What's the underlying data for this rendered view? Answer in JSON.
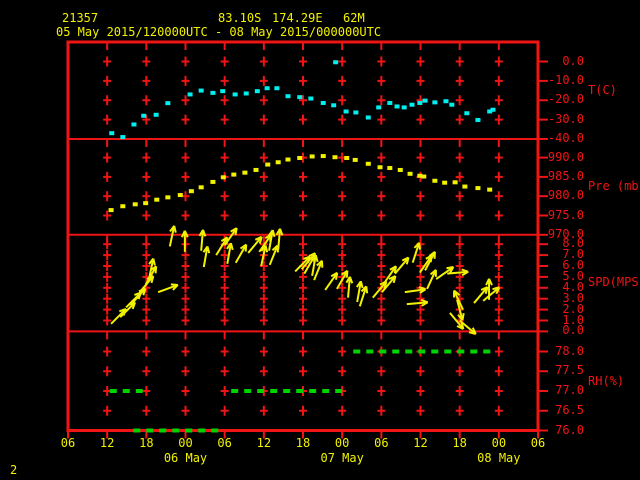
{
  "header": {
    "station_id": "21357",
    "latitude": "83.10S",
    "longitude": "174.29E",
    "elevation": "62M",
    "time_range": "05 May 2015/120000UTC - 08 May 2015/000000UTC"
  },
  "page_number": "2",
  "colors": {
    "background": "#000000",
    "grid_red": "#f01414",
    "text_yellow": "#f2f200",
    "temperature_cyan": "#00f0f0",
    "pressure_yellow": "#f2f200",
    "wind_yellow": "#f2f200",
    "humidity_green": "#00d400"
  },
  "x_axis": {
    "hours_origin": "05 May 2015 0600 UTC",
    "tick_hours": [
      0,
      6,
      12,
      18,
      24,
      30,
      36,
      42,
      48,
      54,
      60,
      66,
      72
    ],
    "tick_labels": [
      "06",
      "12",
      "18",
      "00",
      "06",
      "12",
      "18",
      "00",
      "06",
      "12",
      "18",
      "00",
      "06"
    ],
    "grid_column_hours": [
      6,
      12,
      18,
      24,
      30,
      36,
      42,
      48,
      54,
      60,
      66
    ],
    "date_labels": [
      {
        "text": "06 May",
        "hour": 18
      },
      {
        "text": "07 May",
        "hour": 42
      },
      {
        "text": "08 May",
        "hour": 66
      }
    ]
  },
  "panels": [
    {
      "id": "temperature",
      "axis_label": "T(C)",
      "tick_labels": [
        "0.0",
        "-10.0",
        "-20.0",
        "-30.0",
        "-40.0"
      ],
      "tick_values": [
        0,
        -10,
        -20,
        -30,
        -40
      ]
    },
    {
      "id": "pressure",
      "axis_label": "Pre (mb)",
      "tick_labels": [
        "990.0",
        "985.0",
        "980.0",
        "975.0",
        "970.0"
      ],
      "tick_values": [
        990,
        985,
        980,
        975,
        970
      ]
    },
    {
      "id": "wind_speed",
      "axis_label": "SPD(MPS)",
      "tick_labels": [
        "8.0",
        "7.0",
        "6.0",
        "5.0",
        "4.0",
        "3.0",
        "2.0",
        "1.0",
        "0.0"
      ],
      "tick_values": [
        8,
        7,
        6,
        5,
        4,
        3,
        2,
        1,
        0
      ]
    },
    {
      "id": "humidity",
      "axis_label": "RH(%)",
      "tick_labels": [
        "78.0",
        "77.5",
        "77.0",
        "76.5",
        "76.0"
      ],
      "tick_values": [
        78,
        77.5,
        77,
        76.5,
        76
      ]
    }
  ],
  "chart_data": [
    {
      "type": "scatter",
      "name": "temperature",
      "ylabel": "T(C)",
      "ylim": [
        -40,
        0
      ],
      "x_unit": "hours after 05 May 2015 0600 UTC",
      "points": [
        [
          6.7,
          -37
        ],
        [
          8.4,
          -39
        ],
        [
          10.1,
          -32.5
        ],
        [
          11.6,
          -28
        ],
        [
          13.5,
          -27.5
        ],
        [
          15.3,
          -21.5
        ],
        [
          18.7,
          -17
        ],
        [
          20.4,
          -15
        ],
        [
          22.2,
          -16.2
        ],
        [
          23.7,
          -15.3
        ],
        [
          25.6,
          -17
        ],
        [
          27.3,
          -16.5
        ],
        [
          29,
          -15.3
        ],
        [
          30.5,
          -13.8
        ],
        [
          32,
          -13.8
        ],
        [
          33.7,
          -17.9
        ],
        [
          35.5,
          -18.4
        ],
        [
          37.2,
          -19.1
        ],
        [
          39.1,
          -21.4
        ],
        [
          40.7,
          -22.6
        ],
        [
          42.6,
          -25.8
        ],
        [
          44.1,
          -26.3
        ],
        [
          46,
          -28.9
        ],
        [
          47.6,
          -23.7
        ],
        [
          49.3,
          -21.4
        ],
        [
          50.4,
          -23.2
        ],
        [
          51.5,
          -23.7
        ],
        [
          52.7,
          -22.3
        ],
        [
          53.9,
          -21.4
        ],
        [
          54.7,
          -20.2
        ],
        [
          56.2,
          -21.1
        ],
        [
          57.9,
          -20.5
        ],
        [
          58.8,
          -22.3
        ],
        [
          61.1,
          -26.7
        ],
        [
          62.8,
          -30.2
        ],
        [
          64.6,
          -25.8
        ],
        [
          65.1,
          -24.9
        ],
        [
          41,
          -0.4
        ]
      ]
    },
    {
      "type": "scatter",
      "name": "pressure",
      "ylabel": "Pre (mb)",
      "ylim": [
        970,
        990
      ],
      "x_unit": "hours after 05 May 2015 0600 UTC",
      "points": [
        [
          6.6,
          976.4
        ],
        [
          8.4,
          977.4
        ],
        [
          10.3,
          977.9
        ],
        [
          11.9,
          978.2
        ],
        [
          13.6,
          979.1
        ],
        [
          15.3,
          979.7
        ],
        [
          17.2,
          980.3
        ],
        [
          18.9,
          981.3
        ],
        [
          20.4,
          982.3
        ],
        [
          22.2,
          983.7
        ],
        [
          23.8,
          984.9
        ],
        [
          25.4,
          985.6
        ],
        [
          27.1,
          986.1
        ],
        [
          28.8,
          986.8
        ],
        [
          30.6,
          988.2
        ],
        [
          32.2,
          988.8
        ],
        [
          33.7,
          989.5
        ],
        [
          35.5,
          989.9
        ],
        [
          37.4,
          990.3
        ],
        [
          39.1,
          990.4
        ],
        [
          40.9,
          990.1
        ],
        [
          42.7,
          989.9
        ],
        [
          44,
          989.4
        ],
        [
          46,
          988.4
        ],
        [
          47.8,
          987.5
        ],
        [
          49.3,
          987.3
        ],
        [
          50.9,
          986.8
        ],
        [
          52.4,
          985.8
        ],
        [
          53.9,
          985.3
        ],
        [
          54.5,
          985.1
        ],
        [
          56.2,
          984
        ],
        [
          57.7,
          983.5
        ],
        [
          59.3,
          983.6
        ],
        [
          60.8,
          982.5
        ],
        [
          62.8,
          982.1
        ],
        [
          64.6,
          981.7
        ]
      ]
    },
    {
      "type": "wind-vector",
      "name": "wind_speed",
      "ylabel": "SPD(MPS)",
      "ylim": [
        0,
        8
      ],
      "x_unit": "hours after 05 May 2015 0600 UTC",
      "point_format": [
        "hour",
        "speed_mps",
        "direction_deg_cw_from_up"
      ],
      "points": [
        [
          6.6,
          0.7,
          45
        ],
        [
          8,
          1.3,
          45
        ],
        [
          8.9,
          2.2,
          45
        ],
        [
          9.7,
          2.5,
          42
        ],
        [
          11,
          3.6,
          40
        ],
        [
          11.9,
          4.3,
          30
        ],
        [
          12.4,
          4.8,
          12
        ],
        [
          13.8,
          3.6,
          70
        ],
        [
          15.6,
          7.8,
          12
        ],
        [
          17.9,
          7.3,
          0
        ],
        [
          20.4,
          7.4,
          5
        ],
        [
          20.8,
          5.9,
          10
        ],
        [
          22.7,
          7,
          32
        ],
        [
          24,
          7.9,
          35
        ],
        [
          24.4,
          6.2,
          10
        ],
        [
          25.7,
          6.3,
          30
        ],
        [
          27.6,
          7.2,
          40
        ],
        [
          29.3,
          7.3,
          35
        ],
        [
          29.6,
          6,
          12
        ],
        [
          30.8,
          7.4,
          10
        ],
        [
          30.9,
          6.1,
          22
        ],
        [
          32.2,
          7.5,
          5
        ],
        [
          34.8,
          5.5,
          45
        ],
        [
          35.8,
          5.7,
          40
        ],
        [
          36.2,
          5.3,
          30
        ],
        [
          37.4,
          5.1,
          10
        ],
        [
          37.7,
          4.7,
          22
        ],
        [
          39.4,
          3.8,
          35
        ],
        [
          41.2,
          3.9,
          30
        ],
        [
          42.9,
          3.1,
          5
        ],
        [
          44.3,
          2.7,
          10
        ],
        [
          44.7,
          2.3,
          18
        ],
        [
          46.7,
          3.1,
          40
        ],
        [
          48.1,
          3.6,
          40
        ],
        [
          48.4,
          4.4,
          35
        ],
        [
          50.1,
          5.3,
          40
        ],
        [
          51.6,
          3.6,
          82
        ],
        [
          51.9,
          2.5,
          85
        ],
        [
          52.8,
          6.3,
          18
        ],
        [
          53.9,
          5.4,
          35
        ],
        [
          54.7,
          5.6,
          28
        ],
        [
          55,
          3.9,
          25
        ],
        [
          56.4,
          4.8,
          55
        ],
        [
          58.1,
          5.3,
          85
        ],
        [
          58.5,
          1.7,
          140
        ],
        [
          59.6,
          2.9,
          165
        ],
        [
          60,
          1,
          130
        ],
        [
          60.5,
          2,
          -25
        ],
        [
          62.2,
          2.6,
          40
        ],
        [
          63.6,
          2.8,
          50
        ],
        [
          64.5,
          2.9,
          0
        ]
      ]
    },
    {
      "type": "dash-segments",
      "name": "relative_humidity",
      "ylabel": "RH(%)",
      "ylim": [
        76,
        78
      ],
      "x_unit": "hours after 05 May 2015 0600 UTC",
      "segment_format": [
        "hour_start",
        "hour_end",
        "value_pct"
      ],
      "segments": [
        [
          6.4,
          12.6,
          77
        ],
        [
          10,
          24.2,
          76
        ],
        [
          25,
          43.2,
          77
        ],
        [
          43.7,
          65.7,
          78
        ]
      ]
    }
  ]
}
